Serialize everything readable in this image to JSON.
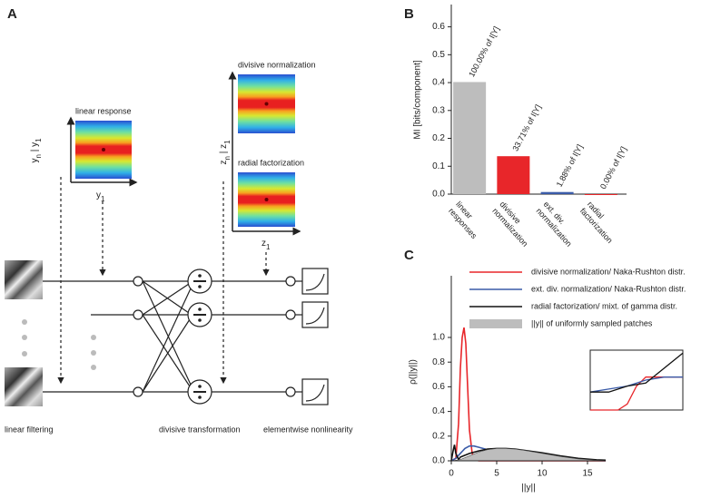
{
  "panel_a": {
    "label": "A",
    "heatmaps": [
      {
        "title": "linear response"
      },
      {
        "title": "divisive normalization"
      },
      {
        "title": "radial factorization"
      }
    ],
    "axis_y": {
      "x_label": [
        "y",
        "1"
      ],
      "y_label": [
        "y",
        "n",
        " | y",
        "1"
      ]
    },
    "axis_z": {
      "x_label": [
        "z",
        "1"
      ],
      "y_label": [
        "z",
        "n",
        " | z",
        "1"
      ]
    },
    "stages": [
      "linear filtering",
      "divisive transformation",
      "elementwise nonlinearity"
    ]
  },
  "chart_data": [
    {
      "type": "bar",
      "panel_label": "B",
      "ylabel": "MI [bits/component]",
      "categories": [
        [
          "linear",
          "responses"
        ],
        [
          "divisive",
          "normalization"
        ],
        [
          "ext. div.",
          "normalization"
        ],
        [
          "radial",
          "factorization"
        ]
      ],
      "values": [
        0.402,
        0.136,
        0.0075,
        0.0
      ],
      "colors": [
        "#bdbdbd",
        "#e8262a",
        "#3a5ba8",
        "#e8262a"
      ],
      "annotations": [
        "100.00% of I[Y]",
        "33.71% of I[Y]",
        "1.88% of I[Y]",
        "0.00% of I[Y]"
      ],
      "ylim": [
        0,
        0.68
      ],
      "yticks": [
        {
          "value": 0,
          "label": "0.0"
        },
        {
          "value": 0.1,
          "label": "0.1"
        },
        {
          "value": 0.2,
          "label": "0.2"
        },
        {
          "value": 0.3,
          "label": "0.3"
        },
        {
          "value": 0.4,
          "label": "0.4"
        },
        {
          "value": 0.5,
          "label": "0.5"
        },
        {
          "value": 0.6,
          "label": "0.6"
        }
      ]
    },
    {
      "type": "line",
      "panel_label": "C",
      "xlabel": "||y||",
      "ylabel": "ρ(||y||)",
      "xlim": [
        0,
        17
      ],
      "ylim": [
        0,
        1.5
      ],
      "xticks": [
        0,
        5,
        10,
        15
      ],
      "yticks": [
        {
          "value": 0,
          "label": "0.0"
        },
        {
          "value": 0.2,
          "label": "0.2"
        },
        {
          "value": 0.4,
          "label": "0.4"
        },
        {
          "value": 0.6,
          "label": "0.6"
        },
        {
          "value": 0.8,
          "label": "0.8"
        },
        {
          "value": 1.0,
          "label": "1.0"
        }
      ],
      "series": [
        {
          "name": "divisive normalization/ Naka-Rushton distr.",
          "color": "#e8262a",
          "style": "line",
          "x": [
            0,
            0.5,
            0.8,
            1,
            1.2,
            1.4,
            1.6,
            1.8,
            2,
            2.3,
            2.7,
            3,
            4,
            17
          ],
          "values": [
            0,
            0.02,
            0.3,
            0.75,
            1.0,
            1.08,
            0.95,
            0.6,
            0.25,
            0.06,
            0.01,
            0,
            0,
            0
          ]
        },
        {
          "name": "ext. div. normalization/ Naka-Rushton distr.",
          "color": "#3a5ba8",
          "style": "line",
          "x": [
            0,
            0.5,
            1,
            1.5,
            2,
            2.5,
            3,
            4,
            5,
            6,
            8,
            10,
            12,
            14,
            17
          ],
          "values": [
            0,
            0.02,
            0.06,
            0.1,
            0.12,
            0.12,
            0.11,
            0.09,
            0.07,
            0.05,
            0.03,
            0.015,
            0.008,
            0.004,
            0.001
          ]
        },
        {
          "name": "radial factorization/ mixt. of gamma distr.",
          "color": "#111111",
          "style": "line",
          "x": [
            0,
            0.2,
            0.35,
            0.5,
            0.8,
            1,
            2,
            3,
            4,
            5,
            6,
            7,
            8,
            10,
            12,
            14,
            16,
            17
          ],
          "values": [
            0,
            0.08,
            0.13,
            0.06,
            0.01,
            0.03,
            0.06,
            0.08,
            0.095,
            0.1,
            0.1,
            0.095,
            0.085,
            0.065,
            0.04,
            0.02,
            0.008,
            0.005
          ]
        },
        {
          "name": "||y|| of uniformly sampled patches",
          "color": "#bdbdbd",
          "style": "area",
          "x": [
            0,
            1,
            2,
            3,
            4,
            5,
            6,
            7,
            8,
            10,
            12,
            14,
            16,
            17
          ],
          "values": [
            0,
            0.01,
            0.04,
            0.07,
            0.09,
            0.1,
            0.1,
            0.095,
            0.085,
            0.06,
            0.035,
            0.015,
            0.005,
            0.002
          ]
        }
      ],
      "inset": {
        "xlim": [
          0,
          10
        ],
        "ylim": [
          0,
          10
        ],
        "series": [
          {
            "color": "#e8262a",
            "x": [
              0,
              3,
              4,
              5,
              6,
              7,
              10
            ],
            "values": [
              0,
              0,
              1,
              4,
              5.5,
              5.5,
              5.5
            ]
          },
          {
            "color": "#3a5ba8",
            "x": [
              0,
              2,
              4,
              6,
              8,
              10
            ],
            "values": [
              3,
              3.5,
              4,
              5,
              5.5,
              5.5
            ]
          },
          {
            "color": "#111111",
            "x": [
              0,
              2,
              4,
              6,
              8,
              10
            ],
            "values": [
              3,
              3,
              4,
              4.5,
              7,
              9.5
            ]
          }
        ]
      }
    }
  ]
}
